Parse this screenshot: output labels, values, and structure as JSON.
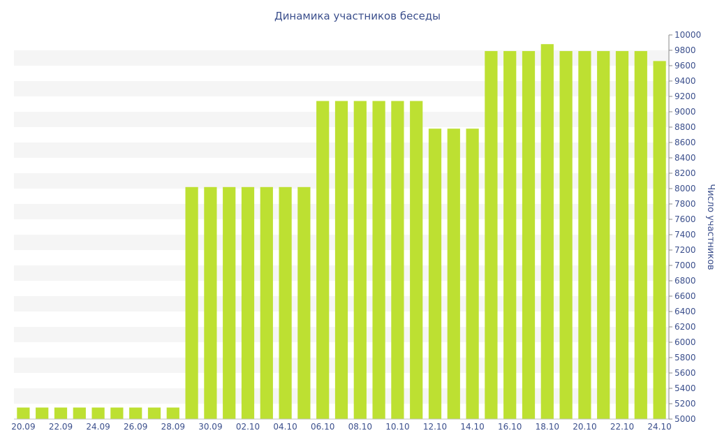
{
  "chart_data": {
    "type": "bar",
    "title": "Динамика участников беседы",
    "xlabel": "",
    "ylabel": "Число участников",
    "ylim": [
      5000,
      10000
    ],
    "y_ticks": [
      5000,
      5200,
      5400,
      5600,
      5800,
      6000,
      6200,
      6400,
      6600,
      6800,
      7000,
      7200,
      7400,
      7600,
      7800,
      8000,
      8200,
      8400,
      8600,
      8800,
      9000,
      9200,
      9400,
      9600,
      9800,
      10000
    ],
    "y_axis_position": "right",
    "grid": "alternating horizontal bands",
    "legend": "none",
    "bar_color": "#bde032",
    "band_color": "#f5f5f5",
    "text_color": "#3b4f8c",
    "categories": [
      "20.09",
      "21.09",
      "22.09",
      "23.09",
      "24.09",
      "25.09",
      "26.09",
      "27.09",
      "28.09",
      "29.09",
      "30.09",
      "01.10",
      "02.10",
      "03.10",
      "04.10",
      "05.10",
      "06.10",
      "07.10",
      "08.10",
      "09.10",
      "10.10",
      "11.10",
      "12.10",
      "13.10",
      "14.10",
      "15.10",
      "16.10",
      "17.10",
      "18.10",
      "19.10",
      "20.10",
      "21.10",
      "22.10",
      "23.10",
      "24.10"
    ],
    "x_tick_labels": [
      "20.09",
      "22.09",
      "24.09",
      "26.09",
      "28.09",
      "30.09",
      "02.10",
      "04.10",
      "06.10",
      "08.10",
      "10.10",
      "12.10",
      "14.10",
      "16.10",
      "18.10",
      "20.10",
      "22.10",
      "24.10"
    ],
    "values": [
      5150,
      5150,
      5150,
      5150,
      5150,
      5150,
      5150,
      5150,
      5150,
      8020,
      8020,
      8020,
      8020,
      8020,
      8020,
      8020,
      9140,
      9140,
      9140,
      9140,
      9140,
      9140,
      8780,
      8780,
      8780,
      9790,
      9790,
      9790,
      9880,
      9790,
      9790,
      9790,
      9790,
      9790,
      9660
    ]
  }
}
